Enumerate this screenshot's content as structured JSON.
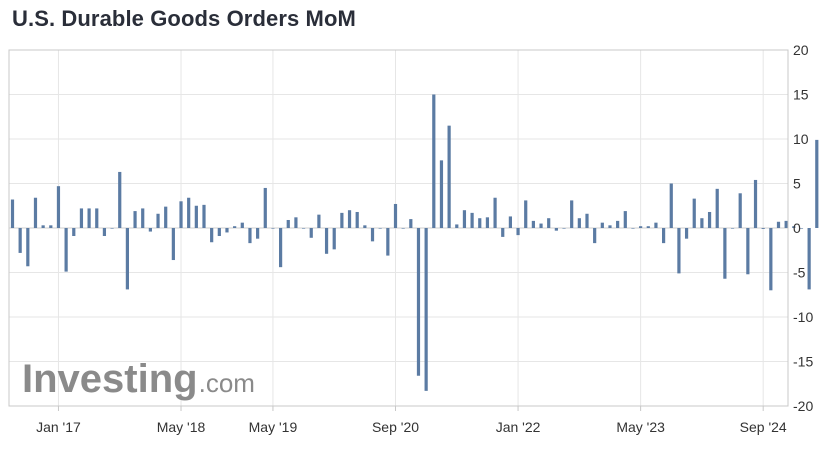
{
  "title": "U.S. Durable Goods Orders MoM",
  "watermark": {
    "brand": "Investing",
    "suffix": ".com"
  },
  "colors": {
    "bar": "#5b7ba3",
    "grid": "#e6e6e6",
    "axis": "#c8c8c8",
    "watermark": "#8a8a8a"
  },
  "chart_data": {
    "type": "bar",
    "title": "U.S. Durable Goods Orders MoM",
    "xlabel": "",
    "ylabel": "",
    "ylim": [
      -20,
      20
    ],
    "y_ticks": [
      20,
      15,
      10,
      5,
      0,
      -5,
      -10,
      -15,
      -20
    ],
    "y_axis_side": "right",
    "grid": true,
    "x_tick_labels": [
      "Jan '17",
      "May '18",
      "May '19",
      "Sep '20",
      "Jan '22",
      "May '23",
      "Sep '24"
    ],
    "x_tick_bar_index": [
      6,
      22,
      34,
      50,
      66,
      82,
      98
    ],
    "values": [
      3.2,
      -2.8,
      -4.3,
      3.4,
      0.3,
      0.3,
      4.7,
      -4.9,
      -0.9,
      2.2,
      2.2,
      2.2,
      -0.9,
      0.0,
      6.3,
      -6.9,
      1.9,
      2.2,
      -0.4,
      1.6,
      2.4,
      -3.6,
      3.0,
      3.4,
      2.5,
      2.6,
      -1.6,
      -0.9,
      -0.5,
      0.2,
      0.6,
      -1.7,
      -1.2,
      4.5,
      0.0,
      -4.4,
      0.9,
      1.2,
      0.0,
      -1.1,
      1.5,
      -2.9,
      -2.4,
      1.7,
      2.0,
      1.8,
      0.3,
      -1.5,
      0.0,
      -3.1,
      2.7,
      0.0,
      1.0,
      -16.6,
      -18.3,
      15.0,
      7.6,
      11.5,
      0.4,
      2.0,
      1.7,
      1.1,
      1.2,
      3.4,
      -1.0,
      1.3,
      -0.8,
      3.1,
      0.8,
      0.5,
      1.1,
      -0.3,
      0.0,
      3.1,
      1.1,
      1.6,
      -1.7,
      0.6,
      0.3,
      0.8,
      1.9,
      0.0,
      0.2,
      0.2,
      0.6,
      -1.7,
      5.0,
      -5.1,
      -1.2,
      3.3,
      1.1,
      1.8,
      4.4,
      -5.7,
      0.0,
      3.9,
      -5.2,
      5.4,
      -0.1,
      -7.0,
      0.7,
      0.8,
      0.2,
      0.0,
      -6.9,
      9.9
    ]
  }
}
